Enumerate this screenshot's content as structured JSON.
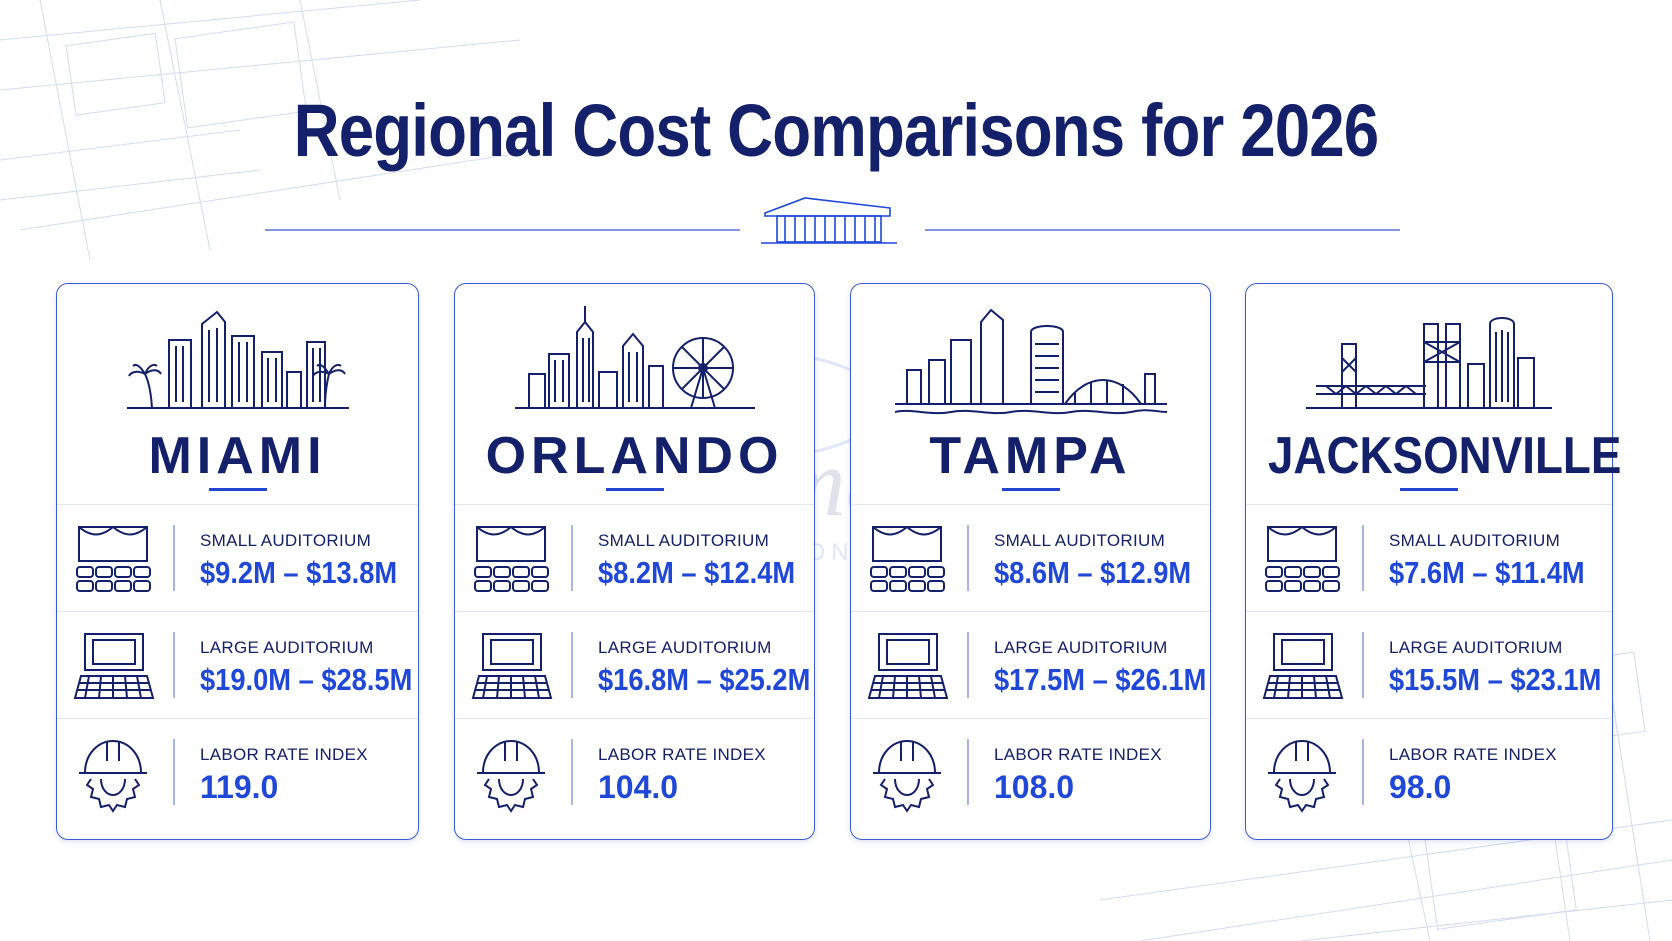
{
  "title": "Regional Cost Comparisons for 2026",
  "watermark": {
    "logo": "EFC",
    "word": "Estimate",
    "tagline": "ESTIMATING CONSULTANTS"
  },
  "colors": {
    "navy": "#14206a",
    "accent": "#1f47d8",
    "border": "#3b5bd6"
  },
  "labels": {
    "small": "SMALL AUDITORIUM",
    "large": "LARGE AUDITORIUM",
    "labor": "LABOR RATE INDEX"
  },
  "cities": [
    {
      "name": "MIAMI",
      "skyline_icon": "miami-skyline-icon",
      "small": "$9.2M – $13.8M",
      "large": "$19.0M – $28.5M",
      "labor": "119.0"
    },
    {
      "name": "ORLANDO",
      "skyline_icon": "orlando-skyline-icon",
      "small": "$8.2M – $12.4M",
      "large": "$16.8M – $25.2M",
      "labor": "104.0"
    },
    {
      "name": "TAMPA",
      "skyline_icon": "tampa-skyline-icon",
      "small": "$8.6M – $12.9M",
      "large": "$17.5M – $26.1M",
      "labor": "108.0"
    },
    {
      "name": "JACKSONVILLE",
      "skyline_icon": "jacksonville-skyline-icon",
      "small": "$7.6M – $11.4M",
      "large": "$15.5M – $23.1M",
      "labor": "98.0"
    }
  ]
}
